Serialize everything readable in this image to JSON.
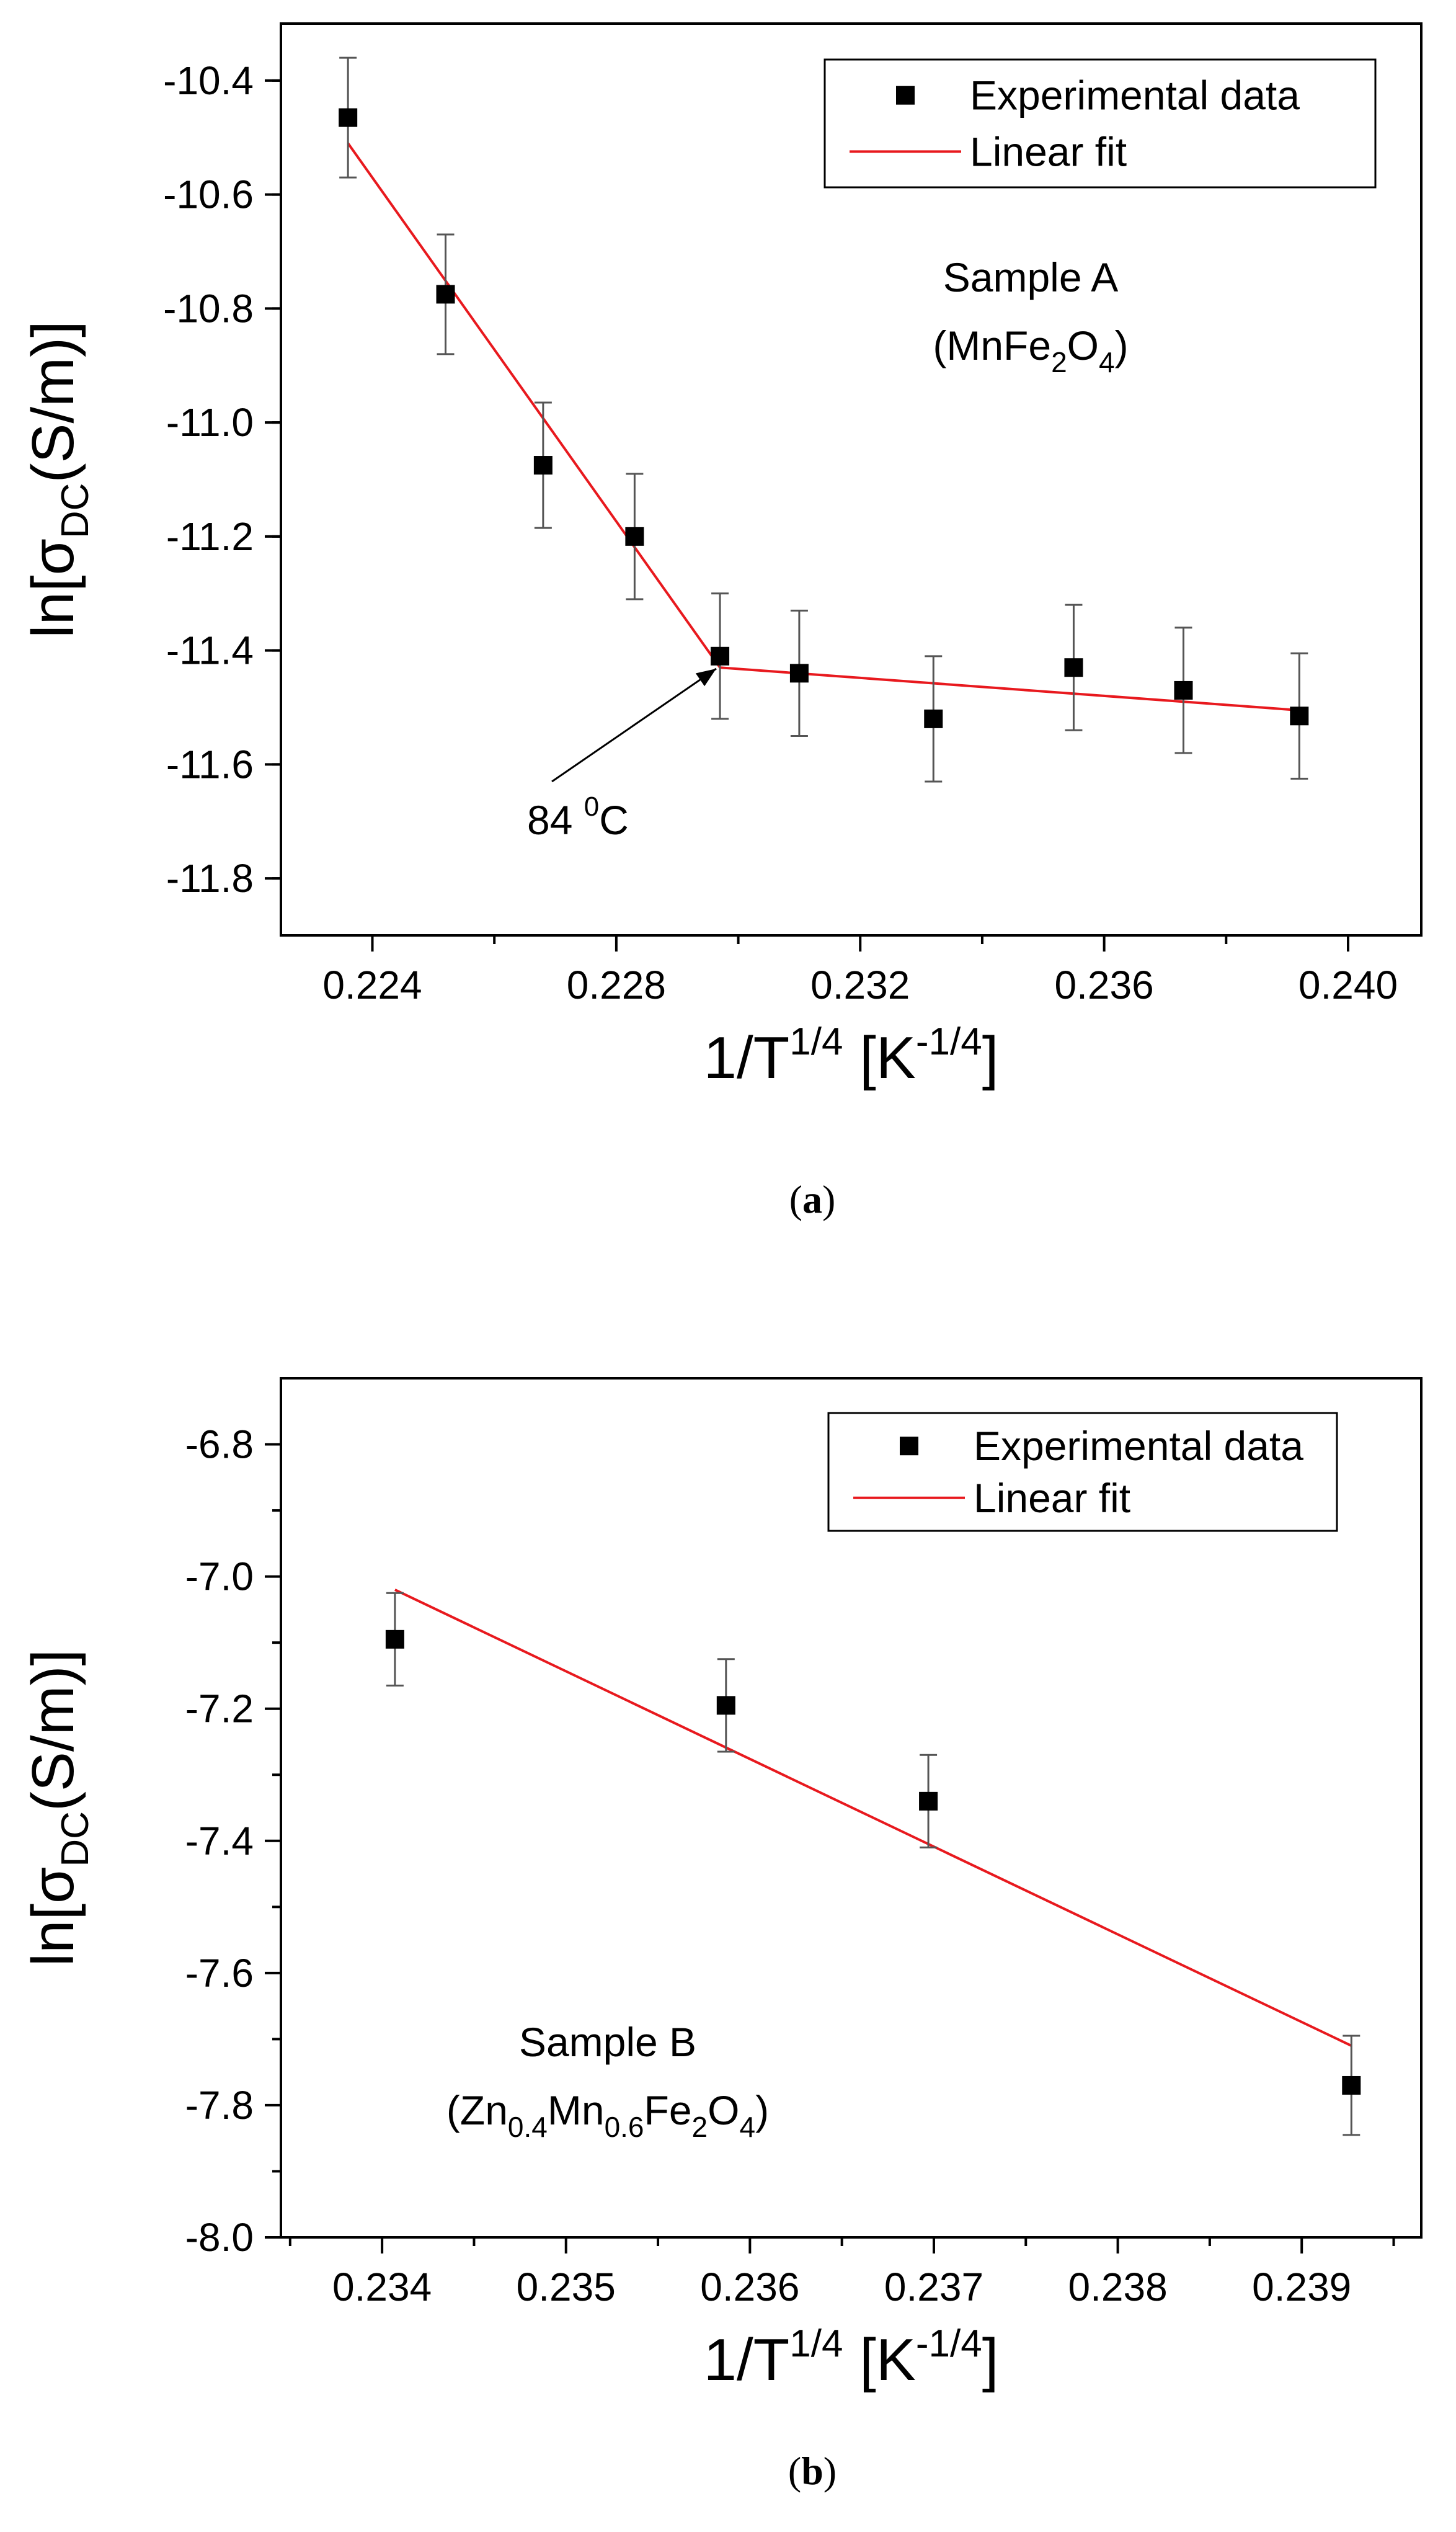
{
  "chart_data": [
    {
      "type": "scatter",
      "panel": "a",
      "caption_letter": "a",
      "xlabel": {
        "base": "1/T",
        "exp": "1/4",
        "unit_open": " [K",
        "unit_exp": "-1/4",
        "unit_close": "]"
      },
      "ylabel": {
        "pre": "ln[σ",
        "sub": "DC",
        "post": "(S/m)]"
      },
      "xlim": [
        0.2225,
        0.2412
      ],
      "ylim": [
        -11.9,
        -10.3
      ],
      "xticks": [
        0.224,
        0.228,
        0.232,
        0.236,
        0.24
      ],
      "xtick_labels": [
        "0.224",
        "0.228",
        "0.232",
        "0.236",
        "0.240"
      ],
      "yticks": [
        -10.4,
        -10.6,
        -10.8,
        -11.0,
        -11.2,
        -11.4,
        -11.6,
        -11.8
      ],
      "ytick_labels": [
        "-10.4",
        "-10.6",
        "-10.8",
        "-11.0",
        "-11.2",
        "-11.4",
        "-11.6",
        "-11.8"
      ],
      "series": [
        {
          "name": "Experimental data",
          "x": [
            0.2236,
            0.2252,
            0.2268,
            0.2283,
            0.2297,
            0.231,
            0.2332,
            0.2355,
            0.2373,
            0.2392
          ],
          "y": [
            -10.465,
            -10.775,
            -11.075,
            -11.2,
            -11.41,
            -11.44,
            -11.52,
            -11.43,
            -11.47,
            -11.515
          ],
          "err": [
            0.105,
            0.105,
            0.11,
            0.11,
            0.11,
            0.11,
            0.11,
            0.11,
            0.11,
            0.11
          ]
        },
        {
          "name": "Linear fit",
          "color": "#e8191e",
          "x": [
            0.2236,
            0.2297,
            0.2392
          ],
          "y": [
            -10.51,
            -11.43,
            -11.505
          ]
        }
      ],
      "legend": [
        "Experimental data",
        "Linear fit"
      ],
      "annotations": {
        "sample_name": "Sample A",
        "formula": [
          "(MnFe",
          "2",
          "O",
          "4",
          ")"
        ],
        "arrow_label_num": "84 ",
        "arrow_label_sup": "0",
        "arrow_label_unit": "C"
      }
    },
    {
      "type": "scatter",
      "panel": "b",
      "caption_letter": "b",
      "xlabel": {
        "base": "1/T",
        "exp": "1/4",
        "unit_open": " [K",
        "unit_exp": "-1/4",
        "unit_close": "]"
      },
      "ylabel": {
        "pre": "ln[σ",
        "sub": "DC",
        "post": "(S/m)]"
      },
      "xlim": [
        0.23345,
        0.23965
      ],
      "ylim": [
        -8.0,
        -6.7
      ],
      "xticks": [
        0.234,
        0.235,
        0.236,
        0.237,
        0.238,
        0.239
      ],
      "xtick_labels": [
        "0.234",
        "0.235",
        "0.236",
        "0.237",
        "0.238",
        "0.239"
      ],
      "yticks": [
        -6.8,
        -7.0,
        -7.2,
        -7.4,
        -7.6,
        -7.8,
        -8.0
      ],
      "ytick_labels": [
        "-6.8",
        "-7.0",
        "-7.2",
        "-7.4",
        "-7.6",
        "-7.8",
        "-8.0"
      ],
      "series": [
        {
          "name": "Experimental data",
          "x": [
            0.23407,
            0.23587,
            0.23697,
            0.23927
          ],
          "y": [
            -7.095,
            -7.195,
            -7.34,
            -7.77
          ],
          "err": [
            0.07,
            0.07,
            0.07,
            0.075
          ]
        },
        {
          "name": "Linear fit",
          "color": "#e8191e",
          "x": [
            0.23407,
            0.23927
          ],
          "y": [
            -7.02,
            -7.71
          ]
        }
      ],
      "legend": [
        "Experimental data",
        "Linear fit"
      ],
      "annotations": {
        "sample_name": "Sample B",
        "formula": [
          "(Zn",
          "0.4",
          "Mn",
          "0.6",
          "Fe",
          "2",
          "O",
          "4",
          ")"
        ]
      }
    }
  ]
}
